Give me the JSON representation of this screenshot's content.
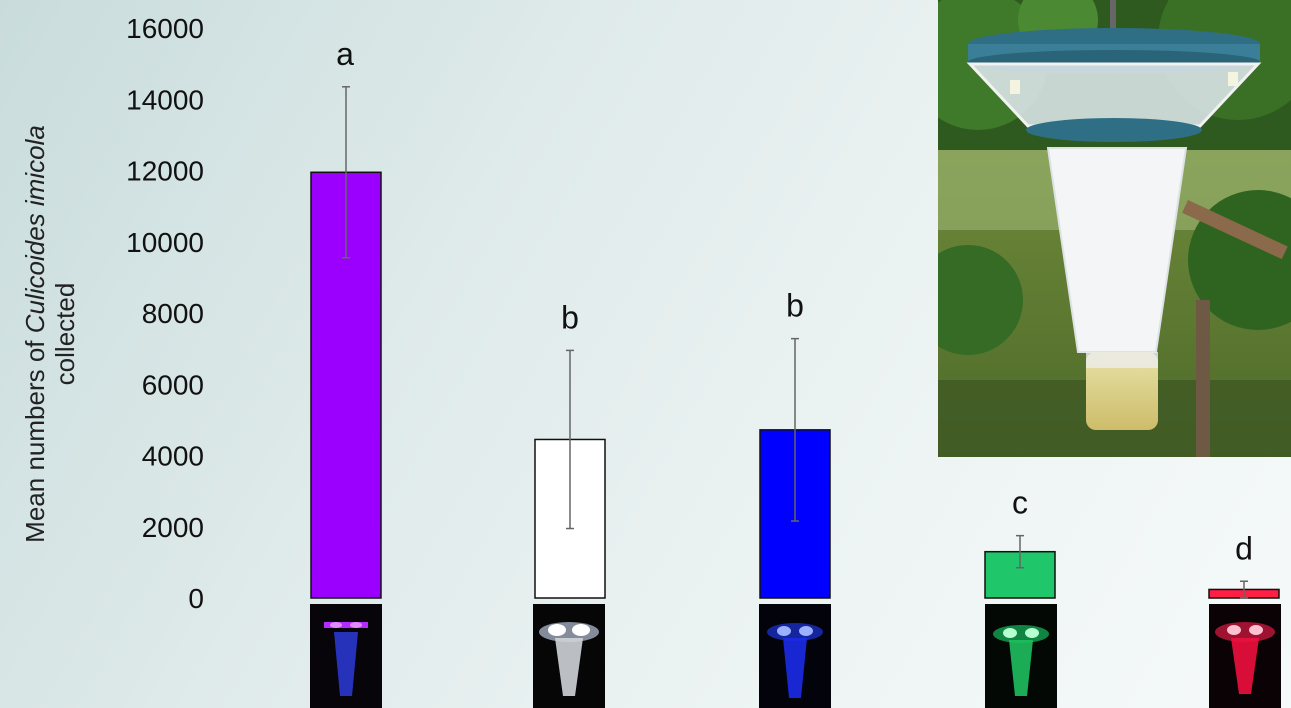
{
  "chart_data": {
    "type": "bar",
    "categories": [
      "UV",
      "White",
      "Blue",
      "Green",
      "Red"
    ],
    "values": [
      11950,
      4450,
      4720,
      1300,
      240
    ],
    "errors": [
      2400,
      2500,
      2560,
      450,
      230
    ],
    "significance_letters": [
      "a",
      "b",
      "b",
      "c",
      "d"
    ],
    "bar_colors": [
      "#9b00ff",
      "#ffffff",
      "#0000ff",
      "#1fc66a",
      "#ff1f45"
    ],
    "ylabel_parts": [
      "Mean numbers of ",
      "Culicoides imicola",
      "collected"
    ],
    "ylim": [
      0,
      16000
    ],
    "yticks": [
      0,
      2000,
      4000,
      6000,
      8000,
      10000,
      12000,
      14000,
      16000
    ],
    "grid": false,
    "legend": "none"
  },
  "images": {
    "photo": "light-trap-photo",
    "thumbnails": [
      "uv-lit-trap",
      "white-lit-trap",
      "blue-lit-trap",
      "green-lit-trap",
      "red-lit-trap"
    ]
  }
}
